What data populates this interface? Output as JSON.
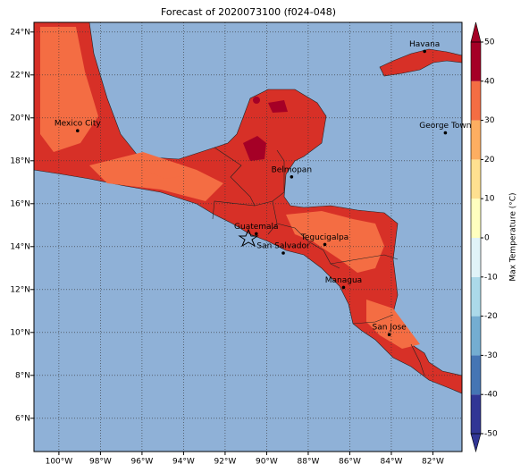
{
  "chart_data": {
    "type": "map",
    "title": "Forecast of 2020073100 (f024-048)",
    "xlim": [
      -101.2,
      -80.6
    ],
    "ylim": [
      4.45,
      24.45
    ],
    "xticks": [
      {
        "value": -100,
        "label": "100°W"
      },
      {
        "value": -98,
        "label": "98°W"
      },
      {
        "value": -96,
        "label": "96°W"
      },
      {
        "value": -94,
        "label": "94°W"
      },
      {
        "value": -92,
        "label": "92°W"
      },
      {
        "value": -90,
        "label": "90°W"
      },
      {
        "value": -88,
        "label": "88°W"
      },
      {
        "value": -86,
        "label": "86°W"
      },
      {
        "value": -84,
        "label": "84°W"
      },
      {
        "value": -82,
        "label": "82°W"
      }
    ],
    "yticks": [
      {
        "value": 6,
        "label": "6°N"
      },
      {
        "value": 8,
        "label": "8°N"
      },
      {
        "value": 10,
        "label": "10°N"
      },
      {
        "value": 12,
        "label": "12°N"
      },
      {
        "value": 14,
        "label": "14°N"
      },
      {
        "value": 16,
        "label": "16°N"
      },
      {
        "value": 18,
        "label": "18°N"
      },
      {
        "value": 20,
        "label": "20°N"
      },
      {
        "value": 22,
        "label": "22°N"
      },
      {
        "value": 24,
        "label": "24°N"
      }
    ],
    "grid": true,
    "cities": [
      {
        "name": "Havana",
        "lon": -82.4,
        "lat": 23.1
      },
      {
        "name": "Mexico City",
        "lon": -99.1,
        "lat": 19.4
      },
      {
        "name": "George Town",
        "lon": -81.4,
        "lat": 19.3
      },
      {
        "name": "Belmopan",
        "lon": -88.8,
        "lat": 17.25
      },
      {
        "name": "Guatemala",
        "lon": -90.5,
        "lat": 14.6
      },
      {
        "name": "Tegucigalpa",
        "lon": -87.2,
        "lat": 14.1
      },
      {
        "name": "San Salvador",
        "lon": -89.2,
        "lat": 13.7
      },
      {
        "name": "Managua",
        "lon": -86.3,
        "lat": 12.1
      },
      {
        "name": "San Jose",
        "lon": -84.1,
        "lat": 9.9
      }
    ],
    "colorbar": {
      "label": "Max Temperature (°C)",
      "ticks": [
        -50,
        -40,
        -30,
        -20,
        -10,
        0,
        10,
        20,
        30,
        40,
        50
      ],
      "colors": [
        "#313695",
        "#4575b4",
        "#74add1",
        "#abd9e9",
        "#e0f3f8",
        "#ffffbf",
        "#fee090",
        "#fdae61",
        "#f46d43",
        "#d73027",
        "#a50026"
      ]
    }
  }
}
